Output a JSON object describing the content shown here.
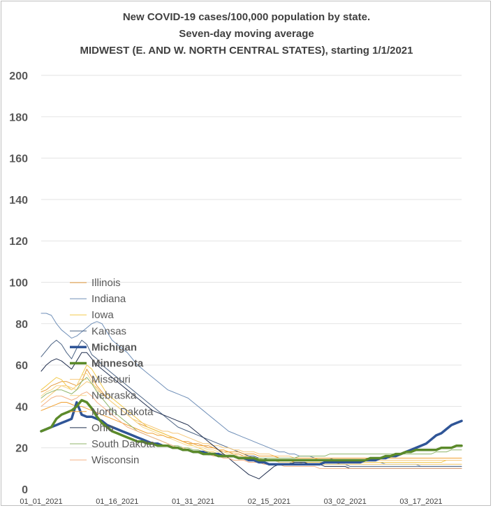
{
  "chart_data": {
    "type": "line",
    "title_lines": [
      "New COVID-19 cases/100,000 population by state.",
      "Seven-day moving average",
      "MIDWEST (E. AND W. NORTH CENTRAL STATES), starting 1/1/2021"
    ],
    "xlabel": "",
    "ylabel": "",
    "ylim": [
      0,
      200
    ],
    "yticks": [
      0,
      20,
      40,
      60,
      80,
      100,
      120,
      140,
      160,
      180,
      200
    ],
    "x_tick_labels": [
      "01_01_2021",
      "01_16_2021",
      "01_31_2021",
      "02_15_2021",
      "03_02_2021",
      "03_17_2021"
    ],
    "x_tick_days": [
      0,
      15,
      30,
      45,
      60,
      75
    ],
    "x_range_days": [
      0,
      83
    ],
    "grid": true,
    "legend_position": "left-middle",
    "series": [
      {
        "name": "Illinois",
        "color": "#e39a3a",
        "width": 1,
        "bold": false,
        "values": [
          47,
          48,
          50,
          51,
          52,
          52,
          51,
          50,
          52,
          58,
          54,
          50,
          47,
          44,
          42,
          40,
          38,
          36,
          34,
          32,
          31,
          30,
          29,
          28,
          27,
          26,
          25,
          24,
          23,
          23,
          22,
          22,
          21,
          21,
          20,
          19,
          18,
          18,
          17,
          17,
          16,
          16,
          15,
          15,
          15,
          14,
          14,
          14,
          14,
          14,
          13,
          13,
          13,
          13,
          13,
          13,
          13,
          13,
          13,
          12,
          12,
          12,
          12,
          12,
          12,
          12,
          12,
          12,
          12,
          12,
          12,
          12,
          12,
          12,
          12,
          12,
          12,
          12,
          12,
          12,
          12,
          12,
          12,
          12
        ]
      },
      {
        "name": "Indiana",
        "color": "#6f8fb8",
        "width": 1,
        "bold": false,
        "values": [
          85,
          85,
          84,
          80,
          77,
          75,
          73,
          74,
          76,
          78,
          80,
          81,
          80,
          76,
          72,
          70,
          68,
          66,
          63,
          60,
          58,
          56,
          54,
          52,
          50,
          48,
          47,
          46,
          45,
          44,
          42,
          40,
          38,
          36,
          34,
          32,
          30,
          28,
          27,
          26,
          25,
          24,
          23,
          22,
          21,
          20,
          19,
          18,
          18,
          17,
          17,
          16,
          16,
          16,
          15,
          15,
          15,
          15,
          14,
          14,
          14,
          14,
          14,
          13,
          13,
          13,
          13,
          13,
          12,
          12,
          12,
          12,
          12,
          12,
          12,
          11,
          11,
          11,
          11,
          11,
          11,
          11,
          11,
          11
        ]
      },
      {
        "name": "Iowa",
        "color": "#f2c94c",
        "width": 1,
        "bold": false,
        "values": [
          48,
          50,
          52,
          54,
          53,
          50,
          48,
          50,
          55,
          60,
          58,
          54,
          50,
          46,
          44,
          42,
          40,
          38,
          36,
          34,
          32,
          30,
          29,
          28,
          27,
          26,
          25,
          24,
          23,
          22,
          21,
          20,
          19,
          18,
          18,
          17,
          17,
          16,
          16,
          15,
          15,
          15,
          14,
          14,
          14,
          14,
          14,
          13,
          13,
          13,
          13,
          13,
          13,
          13,
          13,
          13,
          13,
          13,
          13,
          13,
          13,
          13,
          13,
          13,
          13,
          13,
          13,
          13,
          13,
          13,
          13,
          13,
          13,
          13,
          13,
          13,
          13,
          13,
          13,
          13,
          14,
          14,
          14,
          14
        ]
      },
      {
        "name": "Kansas",
        "color": "#4b6384",
        "width": 1,
        "bold": false,
        "values": [
          64,
          67,
          70,
          72,
          70,
          66,
          63,
          68,
          72,
          70,
          65,
          63,
          60,
          58,
          56,
          54,
          52,
          50,
          48,
          46,
          44,
          42,
          40,
          38,
          36,
          34,
          32,
          30,
          29,
          28,
          27,
          26,
          25,
          24,
          23,
          22,
          21,
          20,
          19,
          18,
          17,
          16,
          16,
          15,
          15,
          14,
          14,
          13,
          13,
          13,
          12,
          12,
          12,
          12,
          12,
          12,
          12,
          12,
          12,
          12,
          12,
          11,
          11,
          11,
          11,
          11,
          11,
          11,
          11,
          11,
          11,
          11,
          11,
          11,
          11,
          11,
          11,
          11,
          11,
          11,
          11,
          11,
          11,
          11
        ]
      },
      {
        "name": "Michigan",
        "color": "#2f5597",
        "width": 3.5,
        "bold": true,
        "values": [
          28,
          29,
          30,
          31,
          32,
          33,
          34,
          42,
          36,
          35,
          35,
          34,
          33,
          31,
          30,
          29,
          28,
          27,
          26,
          25,
          24,
          23,
          22,
          22,
          21,
          21,
          20,
          20,
          19,
          19,
          18,
          18,
          18,
          17,
          17,
          17,
          16,
          16,
          16,
          15,
          15,
          14,
          14,
          13,
          13,
          12,
          12,
          12,
          12,
          12,
          12,
          12,
          12,
          12,
          12,
          12,
          13,
          13,
          13,
          13,
          13,
          13,
          13,
          13,
          14,
          14,
          14,
          15,
          15,
          16,
          16,
          17,
          18,
          19,
          20,
          21,
          22,
          24,
          26,
          27,
          29,
          31,
          32,
          33
        ]
      },
      {
        "name": "Minnesota",
        "color": "#5b8a2a",
        "width": 3.5,
        "bold": true,
        "values": [
          28,
          29,
          30,
          34,
          36,
          37,
          38,
          40,
          43,
          42,
          39,
          35,
          32,
          30,
          28,
          27,
          26,
          25,
          24,
          23,
          23,
          22,
          22,
          21,
          21,
          21,
          20,
          20,
          19,
          19,
          18,
          18,
          17,
          17,
          17,
          16,
          16,
          16,
          16,
          15,
          15,
          15,
          15,
          14,
          14,
          14,
          14,
          14,
          14,
          14,
          14,
          14,
          14,
          14,
          14,
          14,
          14,
          14,
          14,
          14,
          14,
          14,
          14,
          14,
          14,
          15,
          15,
          15,
          16,
          16,
          17,
          17,
          18,
          18,
          19,
          19,
          19,
          19,
          19,
          20,
          20,
          20,
          21,
          21
        ]
      },
      {
        "name": "Missouri",
        "color": "#f6c777",
        "width": 1,
        "bold": false,
        "values": [
          42,
          44,
          46,
          48,
          50,
          50,
          49,
          48,
          50,
          52,
          51,
          49,
          46,
          44,
          42,
          40,
          38,
          36,
          34,
          33,
          32,
          31,
          30,
          29,
          28,
          28,
          27,
          27,
          26,
          25,
          24,
          23,
          22,
          22,
          21,
          21,
          20,
          20,
          19,
          19,
          18,
          18,
          18,
          17,
          17,
          17,
          16,
          16,
          16,
          16,
          15,
          15,
          15,
          15,
          15,
          14,
          14,
          14,
          14,
          14,
          14,
          14,
          14,
          14,
          14,
          14,
          14,
          14,
          14,
          14,
          14,
          14,
          14,
          14,
          14,
          14,
          14,
          14,
          14,
          14,
          14,
          14,
          14,
          14
        ]
      },
      {
        "name": "Nebraska",
        "color": "#f8d88a",
        "width": 1,
        "bold": false,
        "values": [
          45,
          47,
          48,
          50,
          50,
          49,
          48,
          50,
          55,
          56,
          52,
          48,
          46,
          44,
          42,
          40,
          38,
          36,
          34,
          32,
          30,
          29,
          28,
          27,
          26,
          25,
          24,
          23,
          22,
          21,
          21,
          20,
          20,
          19,
          19,
          18,
          18,
          17,
          17,
          16,
          16,
          15,
          15,
          15,
          14,
          14,
          14,
          13,
          13,
          13,
          13,
          13,
          12,
          12,
          12,
          12,
          12,
          12,
          12,
          12,
          12,
          12,
          12,
          12,
          12,
          12,
          12,
          12,
          12,
          12,
          12,
          12,
          12,
          12,
          12,
          12,
          12,
          12,
          12,
          12,
          12,
          12,
          12,
          12
        ]
      },
      {
        "name": "North Dakota",
        "color": "#f0a030",
        "width": 1,
        "bold": false,
        "values": [
          38,
          39,
          40,
          41,
          42,
          42,
          41,
          40,
          40,
          39,
          38,
          37,
          36,
          35,
          34,
          33,
          32,
          31,
          30,
          29,
          28,
          27,
          27,
          26,
          26,
          25,
          25,
          24,
          23,
          22,
          22,
          21,
          21,
          20,
          20,
          19,
          19,
          18,
          18,
          18,
          17,
          17,
          17,
          16,
          16,
          16,
          16,
          15,
          15,
          15,
          15,
          15,
          15,
          15,
          15,
          15,
          15,
          15,
          15,
          15,
          15,
          15,
          15,
          15,
          15,
          15,
          15,
          15,
          15,
          15,
          15,
          15,
          15,
          15,
          15,
          15,
          15,
          15,
          15,
          15,
          15,
          15,
          15,
          15
        ]
      },
      {
        "name": "Ohio",
        "color": "#1f2d4d",
        "width": 1,
        "bold": false,
        "values": [
          57,
          60,
          62,
          63,
          62,
          60,
          58,
          62,
          66,
          66,
          63,
          60,
          58,
          56,
          54,
          52,
          50,
          48,
          46,
          44,
          42,
          40,
          38,
          37,
          36,
          35,
          34,
          33,
          32,
          31,
          29,
          27,
          25,
          23,
          21,
          19,
          17,
          15,
          13,
          11,
          9,
          7,
          6,
          5,
          7,
          9,
          11,
          12,
          12,
          12,
          13,
          13,
          13,
          12,
          12,
          12,
          11,
          11,
          11,
          11,
          11,
          10,
          10,
          10,
          10,
          10,
          10,
          10,
          10,
          10,
          10,
          10,
          10,
          10,
          10,
          10,
          10,
          10,
          10,
          10,
          10,
          10,
          10,
          10
        ]
      },
      {
        "name": "South Dakota",
        "color": "#8fb56a",
        "width": 1,
        "bold": false,
        "values": [
          44,
          46,
          47,
          48,
          48,
          47,
          46,
          48,
          52,
          54,
          51,
          47,
          44,
          41,
          38,
          36,
          34,
          32,
          30,
          28,
          27,
          26,
          25,
          24,
          23,
          22,
          21,
          21,
          20,
          20,
          19,
          19,
          18,
          18,
          17,
          17,
          16,
          16,
          16,
          15,
          15,
          15,
          15,
          15,
          15,
          15,
          15,
          15,
          15,
          15,
          15,
          16,
          16,
          16,
          16,
          16,
          16,
          17,
          17,
          17,
          17,
          17,
          17,
          17,
          17,
          17,
          17,
          17,
          17,
          17,
          17,
          17,
          17,
          17,
          17,
          17,
          17,
          17,
          18,
          18,
          18,
          19,
          19,
          19
        ]
      },
      {
        "name": "Wisconsin",
        "color": "#f4b183",
        "width": 1,
        "bold": false,
        "values": [
          40,
          42,
          44,
          45,
          45,
          44,
          43,
          44,
          46,
          47,
          45,
          42,
          40,
          38,
          36,
          34,
          32,
          30,
          29,
          28,
          27,
          26,
          25,
          24,
          23,
          22,
          21,
          20,
          20,
          19,
          18,
          18,
          17,
          17,
          16,
          16,
          15,
          15,
          14,
          14,
          14,
          13,
          13,
          13,
          12,
          12,
          12,
          12,
          11,
          11,
          11,
          11,
          11,
          11,
          11,
          10,
          10,
          10,
          10,
          10,
          10,
          10,
          10,
          10,
          10,
          10,
          10,
          10,
          10,
          10,
          10,
          10,
          10,
          10,
          10,
          10,
          10,
          10,
          10,
          10,
          10,
          10,
          10,
          10
        ]
      }
    ]
  }
}
